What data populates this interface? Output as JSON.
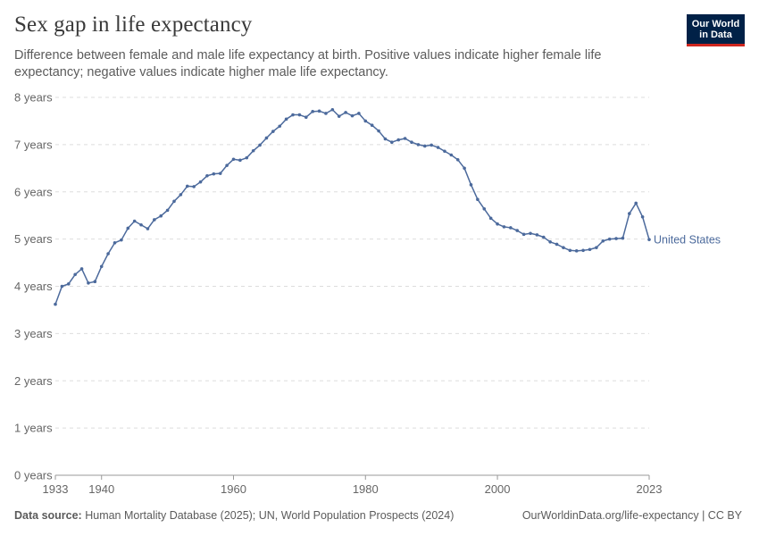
{
  "header": {
    "title": "Sex gap in life expectancy",
    "subtitle": "Difference between female and male life expectancy at birth. Positive values indicate higher female life expectancy; negative values indicate higher male life expectancy."
  },
  "logo": {
    "line1": "Our World",
    "line2": "in Data",
    "bg_color": "#002147",
    "accent_color": "#ce261e"
  },
  "footer": {
    "source_label": "Data source:",
    "source_text": "Human Mortality Database (2025); UN, World Population Prospects (2024)",
    "license": "OurWorldinData.org/life-expectancy | CC BY"
  },
  "chart_data": {
    "type": "line",
    "title": "Sex gap in life expectancy",
    "xlabel": "",
    "ylabel": "",
    "xlim": [
      1933,
      2023
    ],
    "ylim": [
      0,
      8
    ],
    "y_unit": "years",
    "y_ticks": [
      {
        "value": 0,
        "label": "0 years"
      },
      {
        "value": 1,
        "label": "1 years"
      },
      {
        "value": 2,
        "label": "2 years"
      },
      {
        "value": 3,
        "label": "3 years"
      },
      {
        "value": 4,
        "label": "4 years"
      },
      {
        "value": 5,
        "label": "5 years"
      },
      {
        "value": 6,
        "label": "6 years"
      },
      {
        "value": 7,
        "label": "7 years"
      },
      {
        "value": 8,
        "label": "8 years"
      }
    ],
    "x_ticks": [
      {
        "value": 1933,
        "label": "1933"
      },
      {
        "value": 1940,
        "label": "1940"
      },
      {
        "value": 1960,
        "label": "1960"
      },
      {
        "value": 1980,
        "label": "1980"
      },
      {
        "value": 2000,
        "label": "2000"
      },
      {
        "value": 2023,
        "label": "2023"
      }
    ],
    "grid": "horizontal dashed",
    "series": [
      {
        "name": "United States",
        "color": "#4c6a9c",
        "x": [
          1933,
          1934,
          1935,
          1936,
          1937,
          1938,
          1939,
          1940,
          1941,
          1942,
          1943,
          1944,
          1945,
          1946,
          1947,
          1948,
          1949,
          1950,
          1951,
          1952,
          1953,
          1954,
          1955,
          1956,
          1957,
          1958,
          1959,
          1960,
          1961,
          1962,
          1963,
          1964,
          1965,
          1966,
          1967,
          1968,
          1969,
          1970,
          1971,
          1972,
          1973,
          1974,
          1975,
          1976,
          1977,
          1978,
          1979,
          1980,
          1981,
          1982,
          1983,
          1984,
          1985,
          1986,
          1987,
          1988,
          1989,
          1990,
          1991,
          1992,
          1993,
          1994,
          1995,
          1996,
          1997,
          1998,
          1999,
          2000,
          2001,
          2002,
          2003,
          2004,
          2005,
          2006,
          2007,
          2008,
          2009,
          2010,
          2011,
          2012,
          2013,
          2014,
          2015,
          2016,
          2017,
          2018,
          2019,
          2020,
          2021,
          2022,
          2023
        ],
        "y": [
          3.62,
          4.0,
          4.05,
          4.25,
          4.37,
          4.07,
          4.1,
          4.42,
          4.69,
          4.92,
          4.98,
          5.23,
          5.38,
          5.3,
          5.22,
          5.41,
          5.49,
          5.61,
          5.8,
          5.94,
          6.12,
          6.11,
          6.21,
          6.34,
          6.38,
          6.39,
          6.56,
          6.69,
          6.67,
          6.72,
          6.87,
          6.99,
          7.14,
          7.28,
          7.39,
          7.54,
          7.63,
          7.63,
          7.58,
          7.7,
          7.71,
          7.66,
          7.74,
          7.6,
          7.68,
          7.61,
          7.66,
          7.5,
          7.41,
          7.29,
          7.12,
          7.05,
          7.1,
          7.13,
          7.05,
          7.0,
          6.97,
          6.99,
          6.94,
          6.86,
          6.78,
          6.68,
          6.5,
          6.15,
          5.84,
          5.64,
          5.44,
          5.32,
          5.26,
          5.24,
          5.18,
          5.1,
          5.12,
          5.09,
          5.04,
          4.94,
          4.89,
          4.82,
          4.76,
          4.75,
          4.76,
          4.78,
          4.82,
          4.96,
          5.0,
          5.01,
          5.02,
          5.54,
          5.76,
          5.47,
          4.99
        ]
      }
    ]
  }
}
